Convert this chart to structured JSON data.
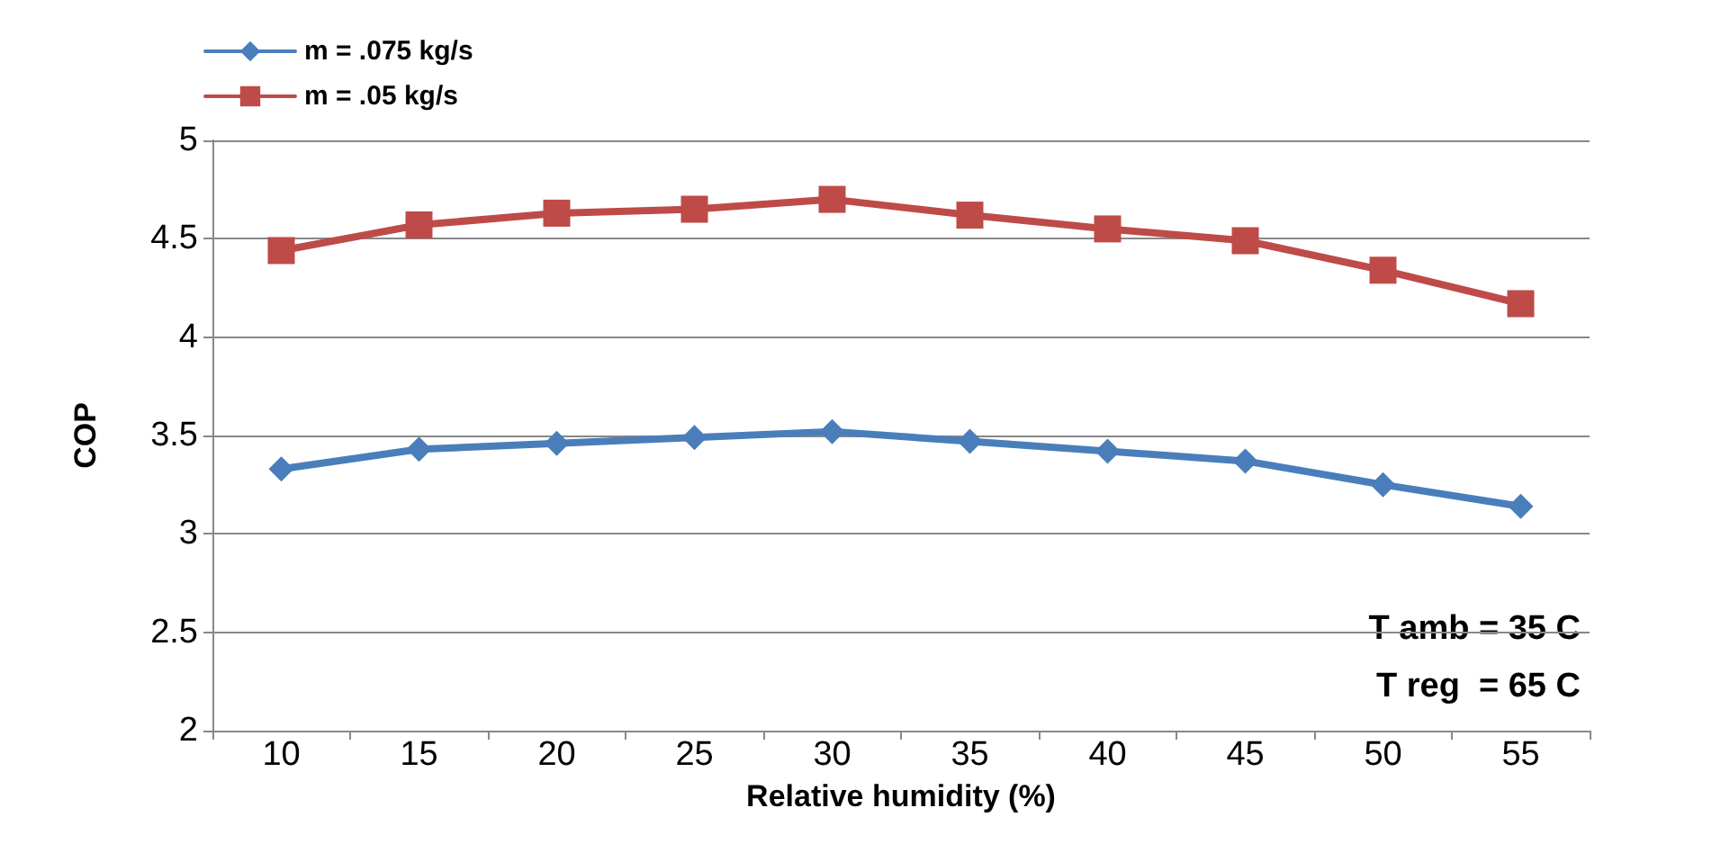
{
  "chart_data": {
    "type": "line",
    "xlabel": "Relative humidity (%)",
    "ylabel": "COP",
    "categories": [
      "10",
      "15",
      "20",
      "25",
      "30",
      "35",
      "40",
      "45",
      "50",
      "55"
    ],
    "series": [
      {
        "name": "m = .075 kg/s",
        "color": "#4a7ebb",
        "marker": "diamond",
        "values": [
          3.33,
          3.43,
          3.46,
          3.49,
          3.52,
          3.47,
          3.42,
          3.37,
          3.25,
          3.14
        ]
      },
      {
        "name": "m = .05 kg/s",
        "color": "#be4b48",
        "marker": "square",
        "values": [
          4.44,
          4.57,
          4.63,
          4.65,
          4.7,
          4.62,
          4.55,
          4.49,
          4.34,
          4.17
        ]
      }
    ],
    "ylim": [
      2,
      5
    ],
    "yticks": [
      2,
      2.5,
      3,
      3.5,
      4,
      4.5,
      5
    ],
    "grid": "y",
    "legend": "top left",
    "line_style": "solid",
    "annotations": [
      "T amb = 35 C",
      "T reg  = 65 C"
    ]
  }
}
